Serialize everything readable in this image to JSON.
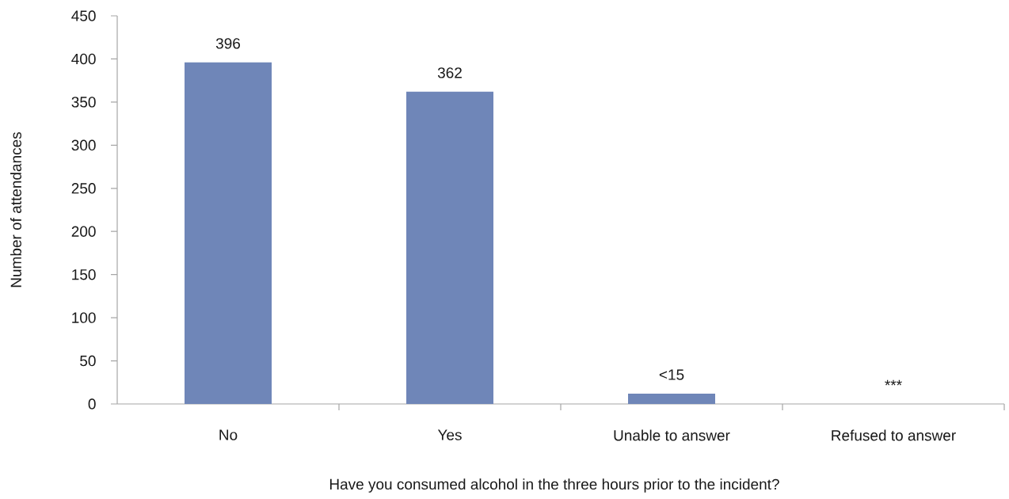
{
  "chart_data": {
    "type": "bar",
    "xlabel": "Have you consumed alcohol in the three hours prior to the incident?",
    "ylabel": "Number of attendances",
    "categories": [
      "No",
      "Yes",
      "Unable to answer",
      "Refused to answer"
    ],
    "values": [
      396,
      362,
      12,
      null
    ],
    "value_labels": [
      "396",
      "362",
      "<15",
      "***"
    ],
    "color": "#6f86b8",
    "ylim": [
      0,
      450
    ],
    "yticks": [
      0,
      50,
      100,
      150,
      200,
      250,
      300,
      350,
      400,
      450
    ]
  }
}
